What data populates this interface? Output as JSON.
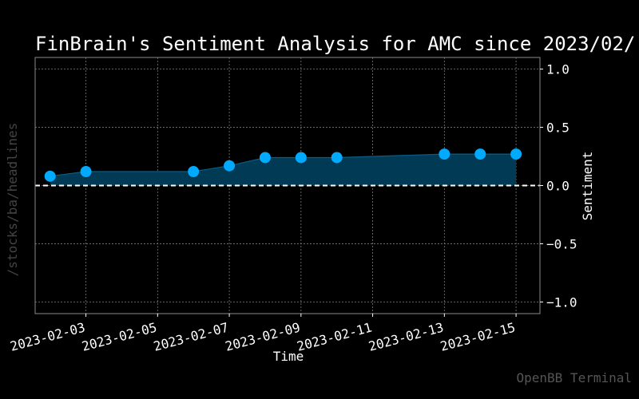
{
  "chart_data": {
    "type": "area",
    "title": "FinBrain's Sentiment Analysis for AMC since 2023/02/",
    "xlabel": "Time",
    "ylabel": "Sentiment",
    "ylim": [
      -1.1,
      1.1
    ],
    "xlim": [
      "2023-02-01 14:00",
      "2023-02-15 16:00"
    ],
    "grid": true,
    "x_ticks": [
      "2023-02-03",
      "2023-02-05",
      "2023-02-07",
      "2023-02-09",
      "2023-02-11",
      "2023-02-13",
      "2023-02-15"
    ],
    "y_ticks": [
      "1.0",
      "0.5",
      "0.0",
      "−0.5",
      "−1.0"
    ],
    "y_tick_values": [
      1.0,
      0.5,
      0.0,
      -0.5,
      -1.0
    ],
    "reference_line": 0.0,
    "points": [
      {
        "x": "2023-02-02",
        "y": 0.08
      },
      {
        "x": "2023-02-03",
        "y": 0.12
      },
      {
        "x": "2023-02-06",
        "y": 0.12
      },
      {
        "x": "2023-02-07",
        "y": 0.17
      },
      {
        "x": "2023-02-08",
        "y": 0.24
      },
      {
        "x": "2023-02-09",
        "y": 0.24
      },
      {
        "x": "2023-02-10",
        "y": 0.24
      },
      {
        "x": "2023-02-13",
        "y": 0.27
      },
      {
        "x": "2023-02-14",
        "y": 0.27
      },
      {
        "x": "2023-02-15",
        "y": 0.27
      }
    ],
    "colors": {
      "marker": "#00aaff",
      "fill": "#003a55",
      "grid": "#7a7a7a",
      "zero_line": "#ffffff"
    }
  },
  "side_text": "/stocks/ba/headlines",
  "watermark": "OpenBB Terminal"
}
